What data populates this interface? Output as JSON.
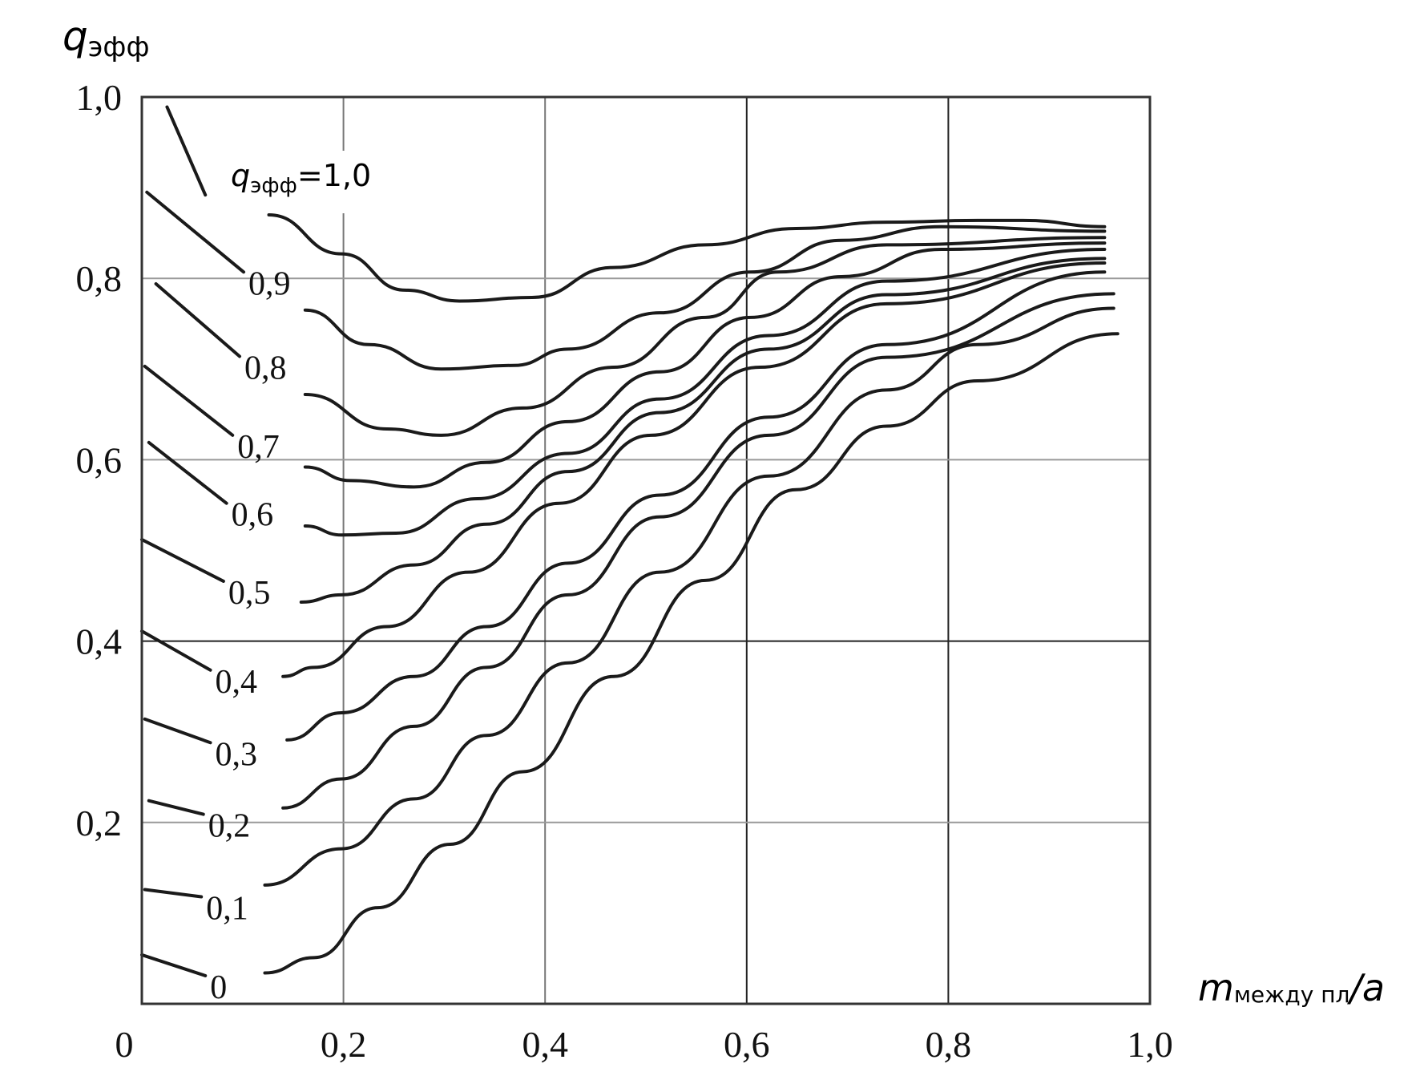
{
  "chart_data": {
    "type": "line",
    "title": "",
    "ylabel": {
      "main": "q",
      "sub": "эфф"
    },
    "xlabel": {
      "main": "m",
      "sub": "между пл",
      "tail": "/a"
    },
    "xlim": [
      0,
      1.0
    ],
    "ylim": [
      0,
      1.0
    ],
    "grid": true,
    "x_ticks": [
      {
        "v": 0,
        "label": "0"
      },
      {
        "v": 0.2,
        "label": "0,2"
      },
      {
        "v": 0.4,
        "label": "0,4"
      },
      {
        "v": 0.6,
        "label": "0,6"
      },
      {
        "v": 0.8,
        "label": "0,8"
      },
      {
        "v": 1.0,
        "label": "1,0"
      }
    ],
    "y_ticks": [
      {
        "v": 0.2,
        "label": "0,2"
      },
      {
        "v": 0.4,
        "label": "0,4"
      },
      {
        "v": 0.6,
        "label": "0,6"
      },
      {
        "v": 0.8,
        "label": "0,8"
      },
      {
        "v": 1.0,
        "label": "1,0"
      }
    ],
    "series_label_main": {
      "q": "q",
      "sub": "эфф",
      "tail": "=1,0"
    },
    "series": [
      {
        "name": "1,0",
        "left": [
          [
            0.025,
            0.989
          ],
          [
            0.063,
            0.892
          ]
        ],
        "right": [
          [
            0.126,
            0.87
          ],
          [
            0.198,
            0.827
          ],
          [
            0.261,
            0.787
          ],
          [
            0.315,
            0.775
          ],
          [
            0.387,
            0.779
          ],
          [
            0.468,
            0.812
          ],
          [
            0.559,
            0.837
          ],
          [
            0.649,
            0.855
          ],
          [
            0.739,
            0.862
          ],
          [
            0.829,
            0.864
          ],
          [
            0.874,
            0.864
          ],
          [
            0.955,
            0.857
          ]
        ]
      },
      {
        "name": "0,9",
        "left": [
          [
            0.005,
            0.895
          ],
          [
            0.101,
            0.807
          ]
        ],
        "right": [
          [
            0.162,
            0.765
          ],
          [
            0.225,
            0.727
          ],
          [
            0.297,
            0.7
          ],
          [
            0.369,
            0.704
          ],
          [
            0.423,
            0.722
          ],
          [
            0.514,
            0.762
          ],
          [
            0.604,
            0.807
          ],
          [
            0.694,
            0.842
          ],
          [
            0.793,
            0.857
          ],
          [
            0.955,
            0.852
          ]
        ]
      },
      {
        "name": "0,8",
        "left": [
          [
            0.014,
            0.794
          ],
          [
            0.097,
            0.714
          ]
        ],
        "right": [
          [
            0.162,
            0.672
          ],
          [
            0.243,
            0.634
          ],
          [
            0.297,
            0.627
          ],
          [
            0.378,
            0.657
          ],
          [
            0.468,
            0.702
          ],
          [
            0.559,
            0.757
          ],
          [
            0.631,
            0.807
          ],
          [
            0.739,
            0.837
          ],
          [
            0.955,
            0.845
          ]
        ]
      },
      {
        "name": "0,7",
        "left": [
          [
            0.003,
            0.703
          ],
          [
            0.09,
            0.627
          ]
        ],
        "right": [
          [
            0.162,
            0.592
          ],
          [
            0.207,
            0.577
          ],
          [
            0.27,
            0.57
          ],
          [
            0.342,
            0.597
          ],
          [
            0.423,
            0.642
          ],
          [
            0.514,
            0.697
          ],
          [
            0.604,
            0.757
          ],
          [
            0.694,
            0.802
          ],
          [
            0.793,
            0.832
          ],
          [
            0.955,
            0.839
          ]
        ]
      },
      {
        "name": "0,6",
        "left": [
          [
            0.007,
            0.619
          ],
          [
            0.084,
            0.552
          ]
        ],
        "right": [
          [
            0.162,
            0.527
          ],
          [
            0.198,
            0.517
          ],
          [
            0.252,
            0.519
          ],
          [
            0.333,
            0.557
          ],
          [
            0.423,
            0.607
          ],
          [
            0.514,
            0.667
          ],
          [
            0.622,
            0.737
          ],
          [
            0.739,
            0.797
          ],
          [
            0.955,
            0.832
          ]
        ]
      },
      {
        "name": "0,5",
        "left": [
          [
            0.0,
            0.512
          ],
          [
            0.081,
            0.466
          ]
        ],
        "right": [
          [
            0.158,
            0.443
          ],
          [
            0.198,
            0.451
          ],
          [
            0.27,
            0.484
          ],
          [
            0.342,
            0.529
          ],
          [
            0.423,
            0.587
          ],
          [
            0.514,
            0.652
          ],
          [
            0.622,
            0.722
          ],
          [
            0.739,
            0.782
          ],
          [
            0.955,
            0.822
          ]
        ]
      },
      {
        "name": "0,4",
        "left": [
          [
            0.0,
            0.411
          ],
          [
            0.068,
            0.368
          ]
        ],
        "right": [
          [
            0.14,
            0.361
          ],
          [
            0.171,
            0.371
          ],
          [
            0.243,
            0.416
          ],
          [
            0.324,
            0.476
          ],
          [
            0.414,
            0.552
          ],
          [
            0.505,
            0.627
          ],
          [
            0.613,
            0.702
          ],
          [
            0.739,
            0.772
          ],
          [
            0.955,
            0.817
          ]
        ]
      },
      {
        "name": "0,3",
        "left": [
          [
            0.003,
            0.314
          ],
          [
            0.068,
            0.288
          ]
        ],
        "right": [
          [
            0.144,
            0.291
          ],
          [
            0.198,
            0.321
          ],
          [
            0.27,
            0.361
          ],
          [
            0.342,
            0.416
          ],
          [
            0.423,
            0.486
          ],
          [
            0.514,
            0.561
          ],
          [
            0.622,
            0.647
          ],
          [
            0.739,
            0.727
          ],
          [
            0.955,
            0.807
          ]
        ]
      },
      {
        "name": "0,2",
        "left": [
          [
            0.007,
            0.224
          ],
          [
            0.061,
            0.209
          ]
        ],
        "right": [
          [
            0.14,
            0.216
          ],
          [
            0.198,
            0.248
          ],
          [
            0.27,
            0.306
          ],
          [
            0.342,
            0.371
          ],
          [
            0.423,
            0.451
          ],
          [
            0.514,
            0.537
          ],
          [
            0.622,
            0.627
          ],
          [
            0.739,
            0.713
          ],
          [
            0.964,
            0.783
          ]
        ]
      },
      {
        "name": "0,1",
        "left": [
          [
            0.003,
            0.126
          ],
          [
            0.059,
            0.118
          ]
        ],
        "right": [
          [
            0.122,
            0.131
          ],
          [
            0.198,
            0.171
          ],
          [
            0.27,
            0.226
          ],
          [
            0.342,
            0.296
          ],
          [
            0.423,
            0.376
          ],
          [
            0.514,
            0.476
          ],
          [
            0.622,
            0.582
          ],
          [
            0.739,
            0.677
          ],
          [
            0.829,
            0.727
          ],
          [
            0.964,
            0.767
          ]
        ]
      },
      {
        "name": "0",
        "left": [
          [
            0.0,
            0.054
          ],
          [
            0.063,
            0.031
          ]
        ],
        "right": [
          [
            0.122,
            0.034
          ],
          [
            0.171,
            0.051
          ],
          [
            0.234,
            0.106
          ],
          [
            0.306,
            0.176
          ],
          [
            0.378,
            0.256
          ],
          [
            0.468,
            0.361
          ],
          [
            0.559,
            0.467
          ],
          [
            0.649,
            0.567
          ],
          [
            0.739,
            0.637
          ],
          [
            0.829,
            0.687
          ],
          [
            0.968,
            0.739
          ]
        ]
      }
    ]
  }
}
